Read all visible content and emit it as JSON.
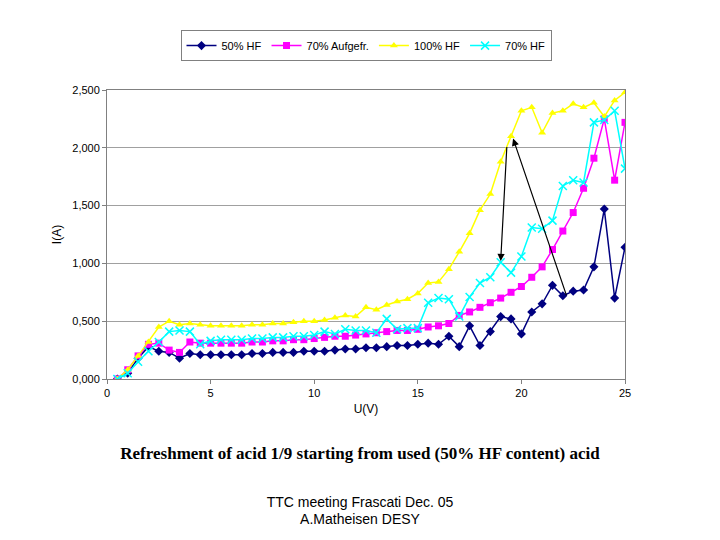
{
  "chart_data": {
    "type": "line",
    "x_label": "U(V)",
    "y_label": "I(A)",
    "x": [
      0.5,
      1,
      1.5,
      2,
      2.5,
      3,
      3.5,
      4,
      4.5,
      5,
      5.5,
      6,
      6.5,
      7,
      7.5,
      8,
      8.5,
      9,
      9.5,
      10,
      10.5,
      11,
      11.5,
      12,
      12.5,
      13,
      13.5,
      14,
      14.5,
      15,
      15.5,
      16,
      16.5,
      17,
      17.5,
      18,
      18.5,
      19,
      19.5,
      20,
      20.5,
      21,
      21.5,
      22,
      22.5,
      23,
      23.5,
      24,
      24.5,
      25
    ],
    "series": [
      {
        "name": "50% HF",
        "color": "#000080",
        "marker": "diamond",
        "line_style": "solid",
        "values": [
          0,
          0.05,
          0.18,
          0.28,
          0.24,
          0.23,
          0.18,
          0.22,
          0.21,
          0.21,
          0.21,
          0.21,
          0.21,
          0.22,
          0.22,
          0.23,
          0.23,
          0.23,
          0.24,
          0.24,
          0.24,
          0.25,
          0.26,
          0.26,
          0.27,
          0.27,
          0.28,
          0.29,
          0.29,
          0.3,
          0.31,
          0.3,
          0.37,
          0.28,
          0.46,
          0.29,
          0.41,
          0.54,
          0.52,
          0.39,
          0.58,
          0.65,
          0.81,
          0.72,
          0.76,
          0.77,
          0.97,
          1.47,
          0.7,
          1.14
        ]
      },
      {
        "name": "70% Aufgefr.",
        "color": "#ff00ff",
        "marker": "square",
        "line_style": "solid",
        "values": [
          0,
          0.08,
          0.2,
          0.3,
          0.31,
          0.25,
          0.23,
          0.32,
          0.31,
          0.31,
          0.31,
          0.31,
          0.31,
          0.32,
          0.32,
          0.33,
          0.33,
          0.34,
          0.34,
          0.35,
          0.36,
          0.37,
          0.37,
          0.38,
          0.39,
          0.4,
          0.41,
          0.42,
          0.42,
          0.43,
          0.45,
          0.46,
          0.48,
          0.55,
          0.58,
          0.62,
          0.66,
          0.7,
          0.75,
          0.8,
          0.88,
          0.97,
          1.12,
          1.28,
          1.44,
          1.65,
          1.91,
          2.25,
          1.72,
          2.22
        ]
      },
      {
        "name": "100% HF",
        "color": "#ffff00",
        "marker": "triangle-up",
        "line_style": "solid",
        "values": [
          0,
          0.08,
          0.2,
          0.32,
          0.45,
          0.5,
          0.47,
          0.48,
          0.47,
          0.46,
          0.46,
          0.46,
          0.46,
          0.47,
          0.47,
          0.48,
          0.48,
          0.49,
          0.5,
          0.5,
          0.51,
          0.53,
          0.55,
          0.54,
          0.62,
          0.6,
          0.64,
          0.67,
          0.69,
          0.74,
          0.83,
          0.84,
          0.95,
          1.1,
          1.26,
          1.46,
          1.6,
          1.88,
          2.1,
          2.32,
          2.35,
          2.13,
          2.3,
          2.32,
          2.38,
          2.35,
          2.39,
          2.27,
          2.41,
          2.48
        ]
      },
      {
        "name": "70% HF",
        "color": "#00ffff",
        "marker": "x",
        "line_style": "solid",
        "values": [
          0,
          0.05,
          0.15,
          0.24,
          0.32,
          0.41,
          0.42,
          0.41,
          0.3,
          0.33,
          0.34,
          0.34,
          0.34,
          0.35,
          0.35,
          0.36,
          0.36,
          0.37,
          0.37,
          0.38,
          0.41,
          0.39,
          0.43,
          0.42,
          0.42,
          0.4,
          0.52,
          0.43,
          0.44,
          0.44,
          0.66,
          0.7,
          0.69,
          0.54,
          0.71,
          0.83,
          0.88,
          1.01,
          0.92,
          1.06,
          1.31,
          1.3,
          1.37,
          1.67,
          1.72,
          1.7,
          2.22,
          2.24,
          2.32,
          1.82
        ]
      }
    ],
    "xlim": [
      0,
      25
    ],
    "xticks": [
      0,
      5,
      10,
      15,
      20,
      25
    ],
    "ylim": [
      0,
      2.5
    ],
    "yticks": [
      {
        "value": 0,
        "label": "0,000"
      },
      {
        "value": 0.5,
        "label": "0,500"
      },
      {
        "value": 1,
        "label": "1,000"
      },
      {
        "value": 1.5,
        "label": "1,500"
      },
      {
        "value": 2,
        "label": "2,000"
      },
      {
        "value": 2.5,
        "label": "2,500"
      }
    ],
    "grid": true,
    "legend": "top",
    "arrows": [
      {
        "from": [
          19.3,
          2.02
        ],
        "to": [
          19.0,
          1.02
        ]
      },
      {
        "from": [
          22.2,
          0.71
        ],
        "to": [
          19.6,
          2.08
        ]
      }
    ]
  },
  "caption": "Refreshment of acid 1/9 starting from used (50% HF content) acid",
  "footer": [
    "TTC meeting Frascati Dec. 05",
    "A.Matheisen DESY"
  ]
}
